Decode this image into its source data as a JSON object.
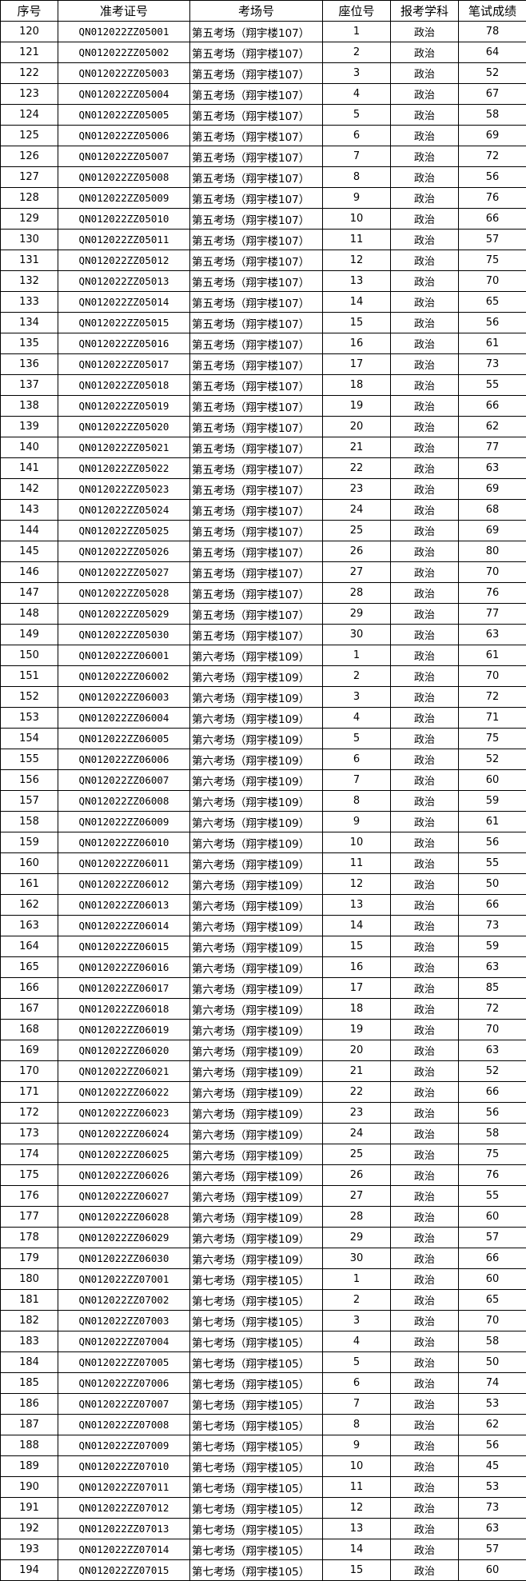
{
  "table": {
    "headers": [
      "序号",
      "准考证号",
      "考场号",
      "座位号",
      "报考学科",
      "笔试成绩"
    ],
    "rows": [
      [
        "120",
        "QN012022ZZ05001",
        "第五考场（翔宇楼107）",
        "1",
        "政治",
        "78"
      ],
      [
        "121",
        "QN012022ZZ05002",
        "第五考场（翔宇楼107）",
        "2",
        "政治",
        "64"
      ],
      [
        "122",
        "QN012022ZZ05003",
        "第五考场（翔宇楼107）",
        "3",
        "政治",
        "52"
      ],
      [
        "123",
        "QN012022ZZ05004",
        "第五考场（翔宇楼107）",
        "4",
        "政治",
        "67"
      ],
      [
        "124",
        "QN012022ZZ05005",
        "第五考场（翔宇楼107）",
        "5",
        "政治",
        "58"
      ],
      [
        "125",
        "QN012022ZZ05006",
        "第五考场（翔宇楼107）",
        "6",
        "政治",
        "69"
      ],
      [
        "126",
        "QN012022ZZ05007",
        "第五考场（翔宇楼107）",
        "7",
        "政治",
        "72"
      ],
      [
        "127",
        "QN012022ZZ05008",
        "第五考场（翔宇楼107）",
        "8",
        "政治",
        "56"
      ],
      [
        "128",
        "QN012022ZZ05009",
        "第五考场（翔宇楼107）",
        "9",
        "政治",
        "76"
      ],
      [
        "129",
        "QN012022ZZ05010",
        "第五考场（翔宇楼107）",
        "10",
        "政治",
        "66"
      ],
      [
        "130",
        "QN012022ZZ05011",
        "第五考场（翔宇楼107）",
        "11",
        "政治",
        "57"
      ],
      [
        "131",
        "QN012022ZZ05012",
        "第五考场（翔宇楼107）",
        "12",
        "政治",
        "75"
      ],
      [
        "132",
        "QN012022ZZ05013",
        "第五考场（翔宇楼107）",
        "13",
        "政治",
        "70"
      ],
      [
        "133",
        "QN012022ZZ05014",
        "第五考场（翔宇楼107）",
        "14",
        "政治",
        "65"
      ],
      [
        "134",
        "QN012022ZZ05015",
        "第五考场（翔宇楼107）",
        "15",
        "政治",
        "56"
      ],
      [
        "135",
        "QN012022ZZ05016",
        "第五考场（翔宇楼107）",
        "16",
        "政治",
        "61"
      ],
      [
        "136",
        "QN012022ZZ05017",
        "第五考场（翔宇楼107）",
        "17",
        "政治",
        "73"
      ],
      [
        "137",
        "QN012022ZZ05018",
        "第五考场（翔宇楼107）",
        "18",
        "政治",
        "55"
      ],
      [
        "138",
        "QN012022ZZ05019",
        "第五考场（翔宇楼107）",
        "19",
        "政治",
        "66"
      ],
      [
        "139",
        "QN012022ZZ05020",
        "第五考场（翔宇楼107）",
        "20",
        "政治",
        "62"
      ],
      [
        "140",
        "QN012022ZZ05021",
        "第五考场（翔宇楼107）",
        "21",
        "政治",
        "77"
      ],
      [
        "141",
        "QN012022ZZ05022",
        "第五考场（翔宇楼107）",
        "22",
        "政治",
        "63"
      ],
      [
        "142",
        "QN012022ZZ05023",
        "第五考场（翔宇楼107）",
        "23",
        "政治",
        "69"
      ],
      [
        "143",
        "QN012022ZZ05024",
        "第五考场（翔宇楼107）",
        "24",
        "政治",
        "68"
      ],
      [
        "144",
        "QN012022ZZ05025",
        "第五考场（翔宇楼107）",
        "25",
        "政治",
        "69"
      ],
      [
        "145",
        "QN012022ZZ05026",
        "第五考场（翔宇楼107）",
        "26",
        "政治",
        "80"
      ],
      [
        "146",
        "QN012022ZZ05027",
        "第五考场（翔宇楼107）",
        "27",
        "政治",
        "70"
      ],
      [
        "147",
        "QN012022ZZ05028",
        "第五考场（翔宇楼107）",
        "28",
        "政治",
        "76"
      ],
      [
        "148",
        "QN012022ZZ05029",
        "第五考场（翔宇楼107）",
        "29",
        "政治",
        "77"
      ],
      [
        "149",
        "QN012022ZZ05030",
        "第五考场（翔宇楼107）",
        "30",
        "政治",
        "63"
      ],
      [
        "150",
        "QN012022ZZ06001",
        "第六考场（翔宇楼109）",
        "1",
        "政治",
        "61"
      ],
      [
        "151",
        "QN012022ZZ06002",
        "第六考场（翔宇楼109）",
        "2",
        "政治",
        "70"
      ],
      [
        "152",
        "QN012022ZZ06003",
        "第六考场（翔宇楼109）",
        "3",
        "政治",
        "72"
      ],
      [
        "153",
        "QN012022ZZ06004",
        "第六考场（翔宇楼109）",
        "4",
        "政治",
        "71"
      ],
      [
        "154",
        "QN012022ZZ06005",
        "第六考场（翔宇楼109）",
        "5",
        "政治",
        "75"
      ],
      [
        "155",
        "QN012022ZZ06006",
        "第六考场（翔宇楼109）",
        "6",
        "政治",
        "52"
      ],
      [
        "156",
        "QN012022ZZ06007",
        "第六考场（翔宇楼109）",
        "7",
        "政治",
        "60"
      ],
      [
        "157",
        "QN012022ZZ06008",
        "第六考场（翔宇楼109）",
        "8",
        "政治",
        "59"
      ],
      [
        "158",
        "QN012022ZZ06009",
        "第六考场（翔宇楼109）",
        "9",
        "政治",
        "61"
      ],
      [
        "159",
        "QN012022ZZ06010",
        "第六考场（翔宇楼109）",
        "10",
        "政治",
        "56"
      ],
      [
        "160",
        "QN012022ZZ06011",
        "第六考场（翔宇楼109）",
        "11",
        "政治",
        "55"
      ],
      [
        "161",
        "QN012022ZZ06012",
        "第六考场（翔宇楼109）",
        "12",
        "政治",
        "50"
      ],
      [
        "162",
        "QN012022ZZ06013",
        "第六考场（翔宇楼109）",
        "13",
        "政治",
        "66"
      ],
      [
        "163",
        "QN012022ZZ06014",
        "第六考场（翔宇楼109）",
        "14",
        "政治",
        "73"
      ],
      [
        "164",
        "QN012022ZZ06015",
        "第六考场（翔宇楼109）",
        "15",
        "政治",
        "59"
      ],
      [
        "165",
        "QN012022ZZ06016",
        "第六考场（翔宇楼109）",
        "16",
        "政治",
        "63"
      ],
      [
        "166",
        "QN012022ZZ06017",
        "第六考场（翔宇楼109）",
        "17",
        "政治",
        "85"
      ],
      [
        "167",
        "QN012022ZZ06018",
        "第六考场（翔宇楼109）",
        "18",
        "政治",
        "72"
      ],
      [
        "168",
        "QN012022ZZ06019",
        "第六考场（翔宇楼109）",
        "19",
        "政治",
        "70"
      ],
      [
        "169",
        "QN012022ZZ06020",
        "第六考场（翔宇楼109）",
        "20",
        "政治",
        "63"
      ],
      [
        "170",
        "QN012022ZZ06021",
        "第六考场（翔宇楼109）",
        "21",
        "政治",
        "52"
      ],
      [
        "171",
        "QN012022ZZ06022",
        "第六考场（翔宇楼109）",
        "22",
        "政治",
        "66"
      ],
      [
        "172",
        "QN012022ZZ06023",
        "第六考场（翔宇楼109）",
        "23",
        "政治",
        "56"
      ],
      [
        "173",
        "QN012022ZZ06024",
        "第六考场（翔宇楼109）",
        "24",
        "政治",
        "58"
      ],
      [
        "174",
        "QN012022ZZ06025",
        "第六考场（翔宇楼109）",
        "25",
        "政治",
        "75"
      ],
      [
        "175",
        "QN012022ZZ06026",
        "第六考场（翔宇楼109）",
        "26",
        "政治",
        "76"
      ],
      [
        "176",
        "QN012022ZZ06027",
        "第六考场（翔宇楼109）",
        "27",
        "政治",
        "55"
      ],
      [
        "177",
        "QN012022ZZ06028",
        "第六考场（翔宇楼109）",
        "28",
        "政治",
        "60"
      ],
      [
        "178",
        "QN012022ZZ06029",
        "第六考场（翔宇楼109）",
        "29",
        "政治",
        "57"
      ],
      [
        "179",
        "QN012022ZZ06030",
        "第六考场（翔宇楼109）",
        "30",
        "政治",
        "66"
      ],
      [
        "180",
        "QN012022ZZ07001",
        "第七考场（翔宇楼105）",
        "1",
        "政治",
        "60"
      ],
      [
        "181",
        "QN012022ZZ07002",
        "第七考场（翔宇楼105）",
        "2",
        "政治",
        "65"
      ],
      [
        "182",
        "QN012022ZZ07003",
        "第七考场（翔宇楼105）",
        "3",
        "政治",
        "70"
      ],
      [
        "183",
        "QN012022ZZ07004",
        "第七考场（翔宇楼105）",
        "4",
        "政治",
        "58"
      ],
      [
        "184",
        "QN012022ZZ07005",
        "第七考场（翔宇楼105）",
        "5",
        "政治",
        "50"
      ],
      [
        "185",
        "QN012022ZZ07006",
        "第七考场（翔宇楼105）",
        "6",
        "政治",
        "74"
      ],
      [
        "186",
        "QN012022ZZ07007",
        "第七考场（翔宇楼105）",
        "7",
        "政治",
        "53"
      ],
      [
        "187",
        "QN012022ZZ07008",
        "第七考场（翔宇楼105）",
        "8",
        "政治",
        "62"
      ],
      [
        "188",
        "QN012022ZZ07009",
        "第七考场（翔宇楼105）",
        "9",
        "政治",
        "56"
      ],
      [
        "189",
        "QN012022ZZ07010",
        "第七考场（翔宇楼105）",
        "10",
        "政治",
        "45"
      ],
      [
        "190",
        "QN012022ZZ07011",
        "第七考场（翔宇楼105）",
        "11",
        "政治",
        "53"
      ],
      [
        "191",
        "QN012022ZZ07012",
        "第七考场（翔宇楼105）",
        "12",
        "政治",
        "73"
      ],
      [
        "192",
        "QN012022ZZ07013",
        "第七考场（翔宇楼105）",
        "13",
        "政治",
        "63"
      ],
      [
        "193",
        "QN012022ZZ07014",
        "第七考场（翔宇楼105）",
        "14",
        "政治",
        "57"
      ],
      [
        "194",
        "QN012022ZZ07015",
        "第七考场（翔宇楼105）",
        "15",
        "政治",
        "60"
      ]
    ]
  }
}
